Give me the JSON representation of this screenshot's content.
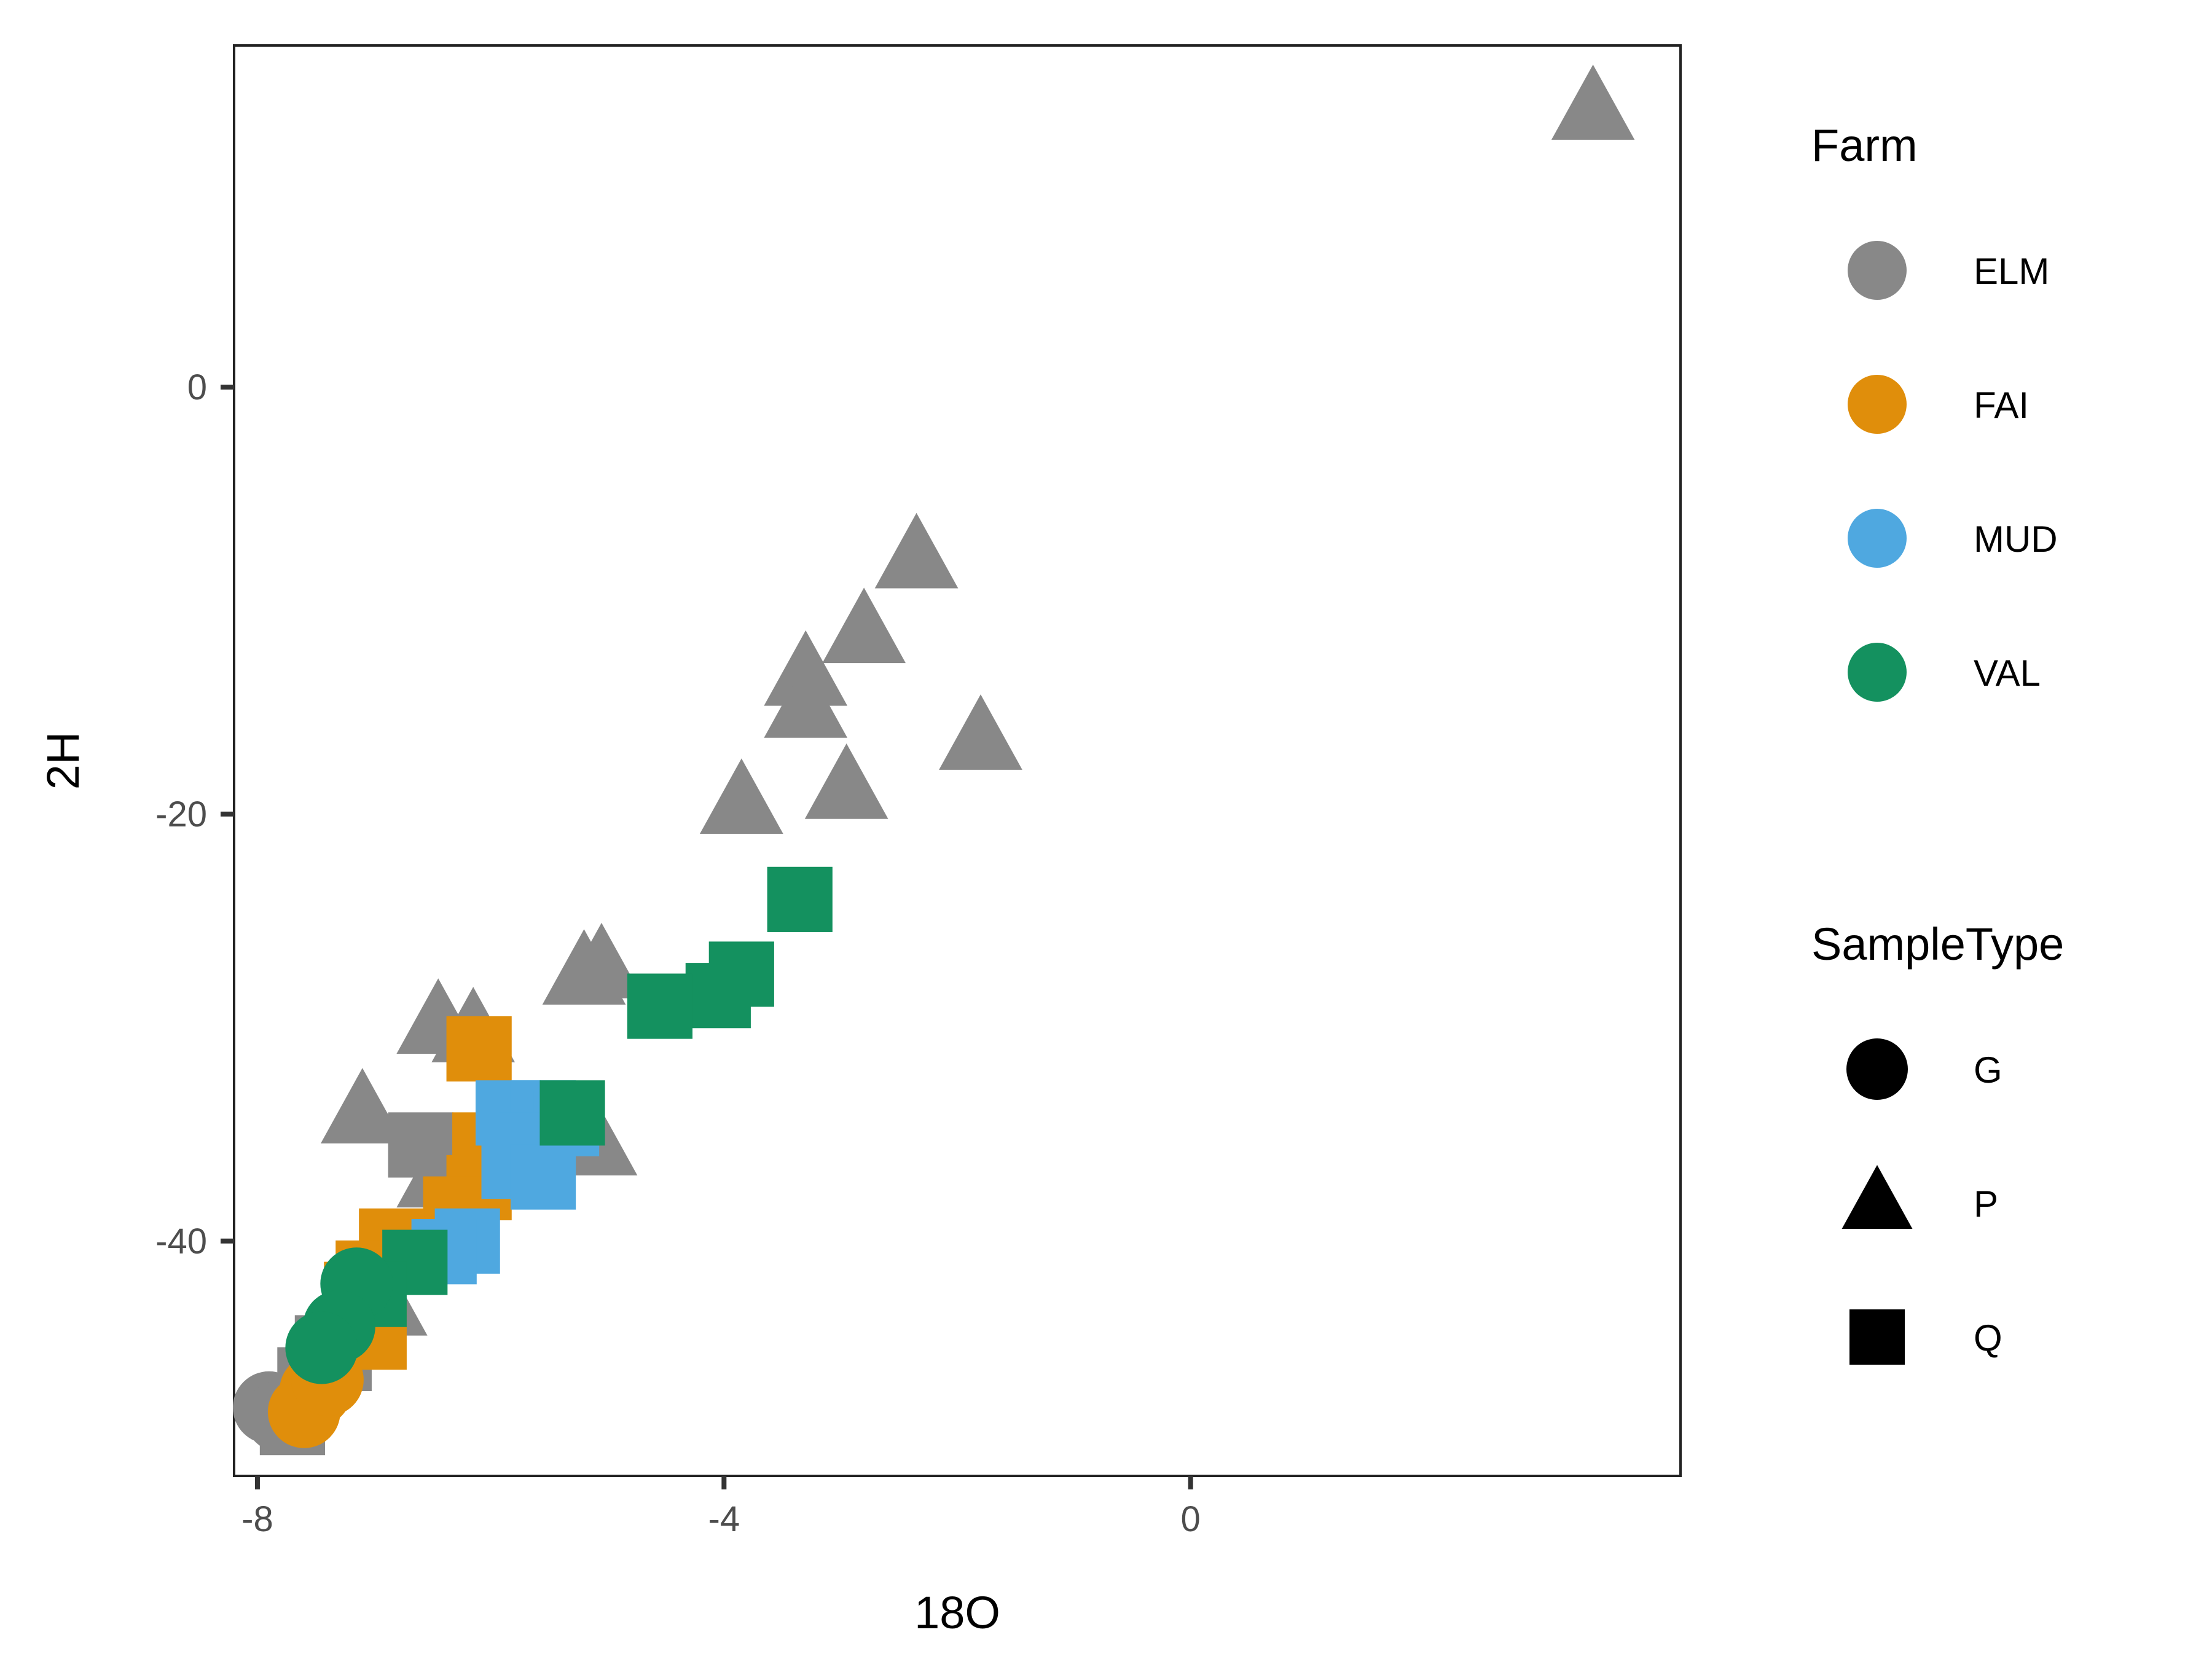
{
  "chart_data": {
    "type": "scatter",
    "xlabel": "18O",
    "ylabel": "2H",
    "xlim": [
      -8.2,
      4.2
    ],
    "ylim": [
      -51,
      16
    ],
    "x_ticks": [
      {
        "value": -8,
        "label": "-8"
      },
      {
        "value": -4,
        "label": "-4"
      },
      {
        "value": 0,
        "label": "0"
      }
    ],
    "y_ticks": [
      {
        "value": 0,
        "label": "0"
      },
      {
        "value": -20,
        "label": "-20"
      },
      {
        "value": -40,
        "label": "-40"
      }
    ],
    "grid": false,
    "legend": {
      "placement": "right",
      "farm": {
        "title": "Farm",
        "items": [
          {
            "label": "ELM",
            "color": "#888888"
          },
          {
            "label": "FAI",
            "color": "#E08E0B"
          },
          {
            "label": "MUD",
            "color": "#4FA8E0"
          },
          {
            "label": "VAL",
            "color": "#14915F"
          }
        ]
      },
      "sample_type": {
        "title": "SampleType",
        "items": [
          {
            "label": "G",
            "shape": "circle"
          },
          {
            "label": "P",
            "shape": "triangle"
          },
          {
            "label": "Q",
            "shape": "square"
          }
        ]
      }
    },
    "series": [
      {
        "farm": "ELM",
        "type": "P",
        "color": "#888888",
        "points": [
          [
            3.45,
            13.0
          ],
          [
            -2.35,
            -8.0
          ],
          [
            -2.8,
            -11.5
          ],
          [
            -3.3,
            -13.5
          ],
          [
            -3.3,
            -15.0
          ],
          [
            -1.8,
            -16.5
          ],
          [
            -3.85,
            -19.5
          ],
          [
            -2.95,
            -18.8
          ],
          [
            -5.2,
            -27.5
          ],
          [
            -5.05,
            -27.2
          ],
          [
            -6.45,
            -29.8
          ],
          [
            -6.15,
            -30.2
          ],
          [
            -7.1,
            -34.0
          ],
          [
            -5.1,
            -35.5
          ],
          [
            -6.45,
            -37.0
          ],
          [
            -7.05,
            -42.5
          ],
          [
            -6.9,
            -43.0
          ],
          [
            -7.45,
            -45.0
          ]
        ]
      },
      {
        "farm": "ELM",
        "type": "Q",
        "color": "#888888",
        "points": [
          [
            -6.6,
            -35.5
          ],
          [
            -7.4,
            -45.0
          ],
          [
            -7.3,
            -45.5
          ],
          [
            -7.55,
            -46.5
          ],
          [
            -7.7,
            -48.5
          ]
        ]
      },
      {
        "farm": "ELM",
        "type": "G",
        "color": "#888888",
        "points": [
          [
            -7.9,
            -47.8
          ],
          [
            -7.8,
            -48.2
          ],
          [
            -7.55,
            -47.0
          ]
        ]
      },
      {
        "farm": "FAI",
        "type": "Q",
        "color": "#E08E0B",
        "points": [
          [
            -6.1,
            -31.0
          ],
          [
            -6.05,
            -35.5
          ],
          [
            -6.1,
            -37.5
          ],
          [
            -6.3,
            -38.5
          ],
          [
            -6.85,
            -40.0
          ],
          [
            -7.05,
            -41.5
          ],
          [
            -7.15,
            -42.5
          ],
          [
            -7.0,
            -44.5
          ]
        ]
      },
      {
        "farm": "FAI",
        "type": "G",
        "color": "#E08E0B",
        "points": [
          [
            -7.5,
            -47.0
          ],
          [
            -7.6,
            -48.0
          ],
          [
            -7.4,
            -46.5
          ]
        ]
      },
      {
        "farm": "MUD",
        "type": "Q",
        "color": "#4FA8E0",
        "points": [
          [
            -5.85,
            -34.0
          ],
          [
            -5.55,
            -34.0
          ],
          [
            -5.35,
            -34.5
          ],
          [
            -5.65,
            -35.5
          ],
          [
            -5.8,
            -36.5
          ],
          [
            -5.55,
            -37.0
          ],
          [
            -6.2,
            -40.0
          ],
          [
            -6.4,
            -40.5
          ]
        ]
      },
      {
        "farm": "VAL",
        "type": "Q",
        "color": "#14915F",
        "points": [
          [
            -3.35,
            -24.0
          ],
          [
            -3.85,
            -27.5
          ],
          [
            -4.05,
            -28.5
          ],
          [
            -4.55,
            -29.0
          ],
          [
            -5.3,
            -34.0
          ],
          [
            -6.65,
            -41.0
          ],
          [
            -7.0,
            -42.5
          ]
        ]
      },
      {
        "farm": "VAL",
        "type": "G",
        "color": "#14915F",
        "points": [
          [
            -7.15,
            -42.0
          ],
          [
            -7.3,
            -44.0
          ],
          [
            -7.45,
            -45.0
          ]
        ]
      }
    ]
  }
}
